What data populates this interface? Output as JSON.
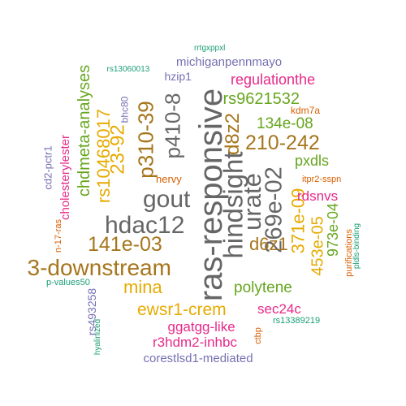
{
  "colors": {
    "teal": "#1b9e77",
    "orange": "#d95f02",
    "purple": "#7570b3",
    "magenta": "#e7298a",
    "green": "#66a61e",
    "gold": "#e6ab02",
    "brown": "#a6761d",
    "gray": "#666666"
  },
  "words": [
    {
      "text": "ras-responsive",
      "color": "gray",
      "rotated": true
    },
    {
      "text": "hindsight",
      "color": "gray",
      "rotated": true
    },
    {
      "text": "gout",
      "color": "gray",
      "rotated": false
    },
    {
      "text": "hdac12",
      "color": "gray",
      "rotated": false
    },
    {
      "text": "urate",
      "color": "gray",
      "rotated": true
    },
    {
      "text": "p410-8",
      "color": "gray",
      "rotated": true
    },
    {
      "text": "269e-02",
      "color": "gray",
      "rotated": true
    },
    {
      "text": "p310-39",
      "color": "brown",
      "rotated": true
    },
    {
      "text": "3-downstream",
      "color": "brown",
      "rotated": false
    },
    {
      "text": "141e-03",
      "color": "brown",
      "rotated": false
    },
    {
      "text": "210-242",
      "color": "brown",
      "rotated": false
    },
    {
      "text": "d8z2",
      "color": "brown",
      "rotated": true
    },
    {
      "text": "d6z1",
      "color": "brown",
      "rotated": false
    },
    {
      "text": "23-92",
      "color": "gold",
      "rotated": true
    },
    {
      "text": "rs10468017",
      "color": "gold",
      "rotated": true
    },
    {
      "text": "371e-09",
      "color": "gold",
      "rotated": true
    },
    {
      "text": "453e-05",
      "color": "gold",
      "rotated": true
    },
    {
      "text": "mina",
      "color": "gold",
      "rotated": false
    },
    {
      "text": "chdmeta-analyses",
      "color": "green",
      "rotated": true
    },
    {
      "text": "rs9621532",
      "color": "green",
      "rotated": false
    },
    {
      "text": "134e-08",
      "color": "green",
      "rotated": false
    },
    {
      "text": "pxdls",
      "color": "green",
      "rotated": false
    },
    {
      "text": "polytene",
      "color": "green",
      "rotated": false
    },
    {
      "text": "973e-04",
      "color": "green",
      "rotated": true
    },
    {
      "text": "ewsr1-crem",
      "color": "gold",
      "rotated": false
    },
    {
      "text": "regulationthe",
      "color": "magenta",
      "rotated": false
    },
    {
      "text": "rdsnvs",
      "color": "magenta",
      "rotated": false
    },
    {
      "text": "sec24c",
      "color": "magenta",
      "rotated": false
    },
    {
      "text": "ggatgg-like",
      "color": "magenta",
      "rotated": false
    },
    {
      "text": "r3hdm2-inhbc",
      "color": "magenta",
      "rotated": false
    },
    {
      "text": "cholesterylester",
      "color": "magenta",
      "rotated": true
    },
    {
      "text": "michiganpennmayo",
      "color": "purple",
      "rotated": false
    },
    {
      "text": "hzip1",
      "color": "purple",
      "rotated": false
    },
    {
      "text": "bhc80",
      "color": "purple",
      "rotated": true
    },
    {
      "text": "cd2-pctr1",
      "color": "purple",
      "rotated": true
    },
    {
      "text": "rs493258",
      "color": "purple",
      "rotated": true
    },
    {
      "text": "corestlsd1-mediated",
      "color": "purple",
      "rotated": false
    },
    {
      "text": "kdm7a",
      "color": "orange",
      "rotated": false
    },
    {
      "text": "nervy",
      "color": "orange",
      "rotated": false
    },
    {
      "text": "itpr2-sspn",
      "color": "orange",
      "rotated": false
    },
    {
      "text": "n-17-ras",
      "color": "orange",
      "rotated": true
    },
    {
      "text": "purifications",
      "color": "orange",
      "rotated": true
    },
    {
      "text": "ctbp",
      "color": "orange",
      "rotated": true
    },
    {
      "text": "rrtgxppxl",
      "color": "teal",
      "rotated": false
    },
    {
      "text": "rs13060013",
      "color": "teal",
      "rotated": false
    },
    {
      "text": "p-values50",
      "color": "teal",
      "rotated": false
    },
    {
      "text": "hyalinized",
      "color": "teal",
      "rotated": true
    },
    {
      "text": "rs13389219",
      "color": "teal",
      "rotated": false
    },
    {
      "text": "pldls-binding",
      "color": "teal",
      "rotated": true
    }
  ]
}
